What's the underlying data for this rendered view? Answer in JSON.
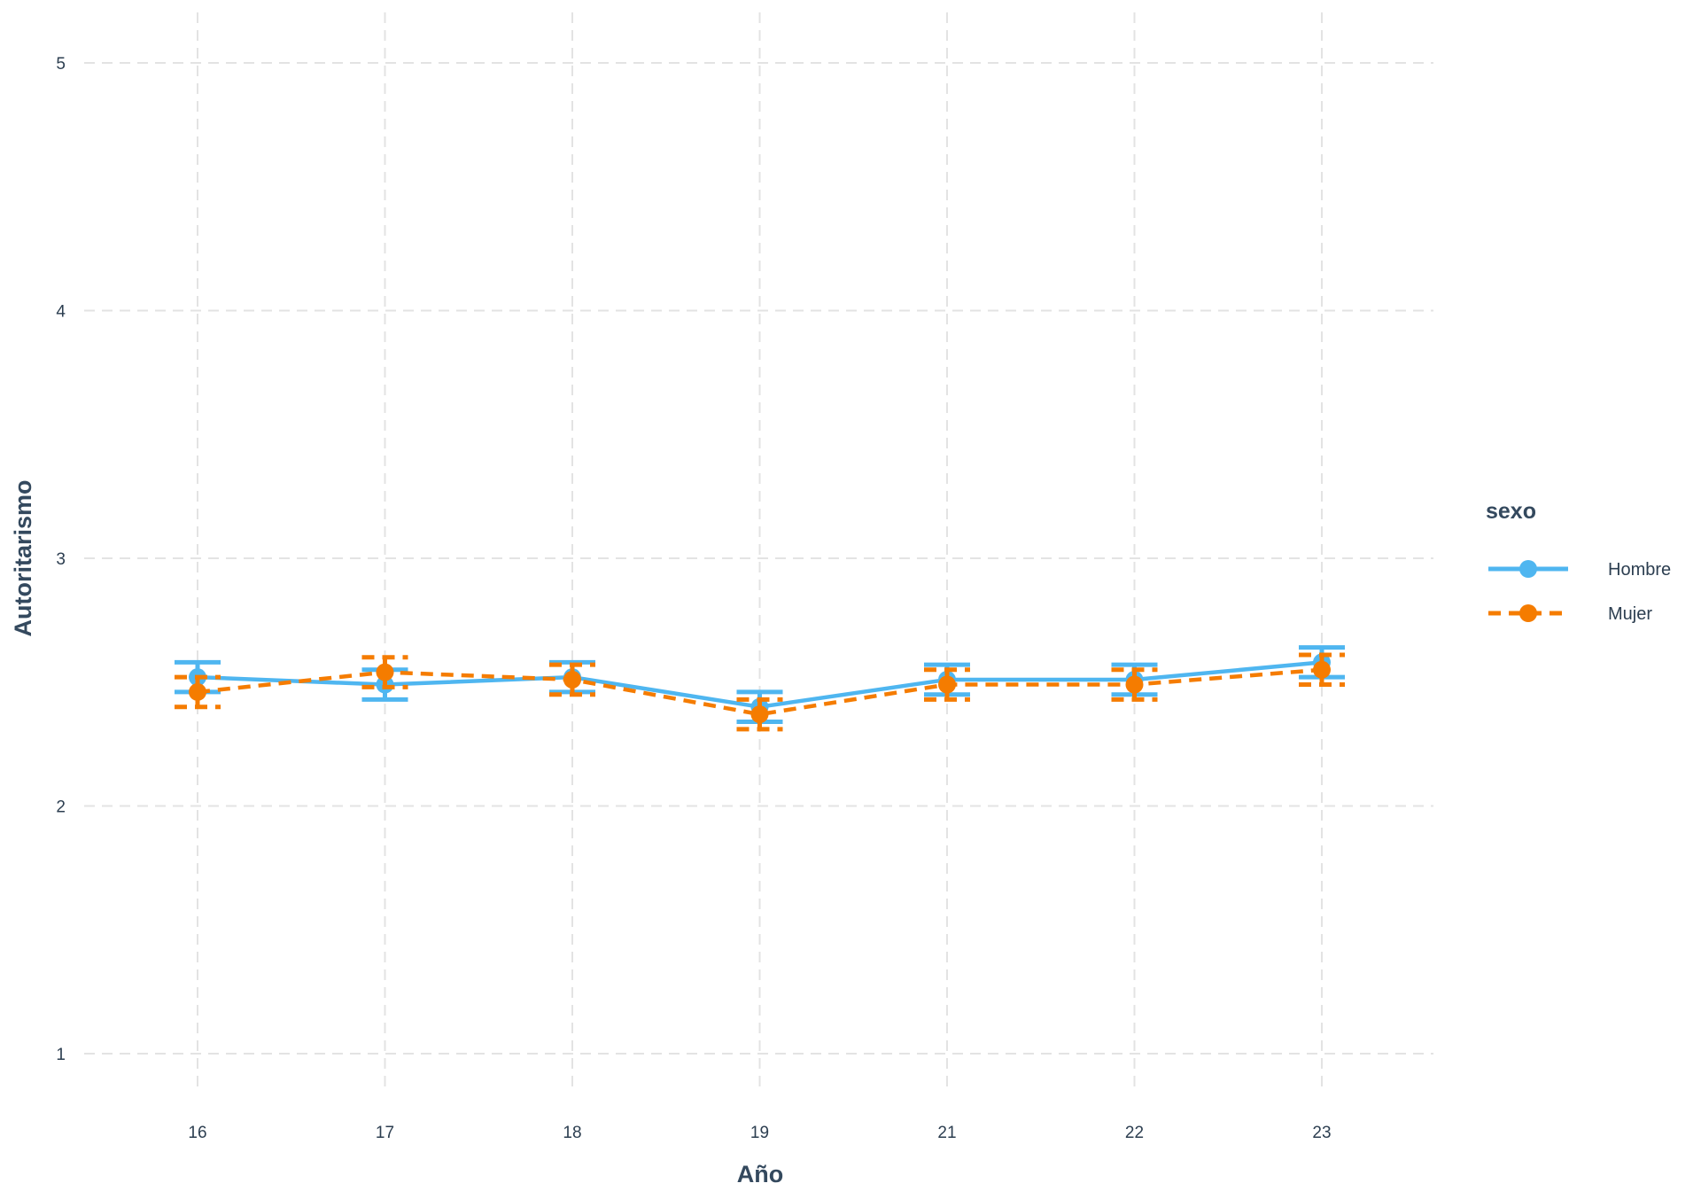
{
  "chart_data": {
    "type": "line",
    "xlabel": "Año",
    "ylabel": "Autoritarismo",
    "categories": [
      "16",
      "17",
      "18",
      "19",
      "21",
      "22",
      "23"
    ],
    "ylim": [
      1,
      5
    ],
    "yticks": [
      "1",
      "2",
      "3",
      "4",
      "5"
    ],
    "grid": true,
    "legend": {
      "title": "sexo",
      "placement": "right"
    },
    "series": [
      {
        "name": "Hombre",
        "color": "#4fb6f0",
        "line_style": "solid",
        "values": [
          2.52,
          2.49,
          2.52,
          2.4,
          2.51,
          2.51,
          2.58
        ],
        "err_low": [
          2.46,
          2.43,
          2.46,
          2.34,
          2.45,
          2.45,
          2.52
        ],
        "err_high": [
          2.58,
          2.55,
          2.58,
          2.46,
          2.57,
          2.57,
          2.64
        ]
      },
      {
        "name": "Mujer",
        "color": "#f57c00",
        "line_style": "dashed",
        "values": [
          2.46,
          2.54,
          2.51,
          2.37,
          2.49,
          2.49,
          2.55
        ],
        "err_low": [
          2.4,
          2.48,
          2.45,
          2.31,
          2.43,
          2.43,
          2.49
        ],
        "err_high": [
          2.52,
          2.6,
          2.57,
          2.43,
          2.55,
          2.55,
          2.61
        ]
      }
    ]
  }
}
